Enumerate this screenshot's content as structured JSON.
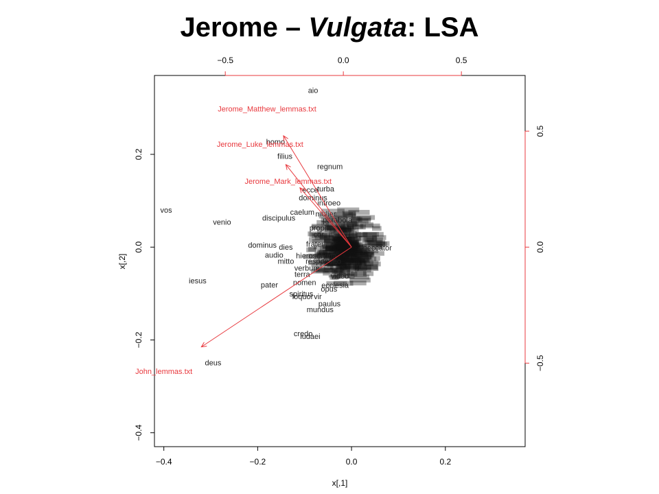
{
  "slide": {
    "title_pre": "Jerome – ",
    "title_italic": "Vulgata",
    "title_post": ": LSA"
  },
  "chart_data": {
    "type": "scatter",
    "subtype": "biplot",
    "xlabel": "x[,1]",
    "ylabel": "x[,2]",
    "xlim": [
      -0.42,
      0.37
    ],
    "ylim": [
      -0.43,
      0.37
    ],
    "x_ticks": [
      -0.4,
      -0.2,
      0.0,
      0.2
    ],
    "x_tick_labels": [
      "−0.4",
      "−0.2",
      "0.0",
      "0.2"
    ],
    "y_ticks": [
      -0.4,
      -0.2,
      0.0,
      0.2
    ],
    "y_tick_labels": [
      "−0.4",
      "−0.2",
      "0.0",
      "0.2"
    ],
    "top_axis_range": [
      -0.8,
      0.77
    ],
    "top_ticks": [
      -0.5,
      0.0,
      0.5
    ],
    "top_tick_labels": [
      "−0.5",
      "0.0",
      "0.5"
    ],
    "right_axis_range": [
      -0.86,
      0.74
    ],
    "right_ticks": [
      -0.5,
      0.0,
      0.5
    ],
    "right_tick_labels": [
      "−0.5",
      "0.0",
      "0.5"
    ],
    "colors": {
      "words": "#222222",
      "vectors": "#e8383d",
      "axes": "#000000"
    },
    "words": [
      {
        "label": "aio",
        "x": -0.082,
        "y": 0.338
      },
      {
        "label": "homo",
        "x": -0.162,
        "y": 0.227
      },
      {
        "label": "filius",
        "x": -0.142,
        "y": 0.196
      },
      {
        "label": "regnum",
        "x": -0.046,
        "y": 0.174
      },
      {
        "label": "ecce",
        "x": -0.088,
        "y": 0.124
      },
      {
        "label": "turba",
        "x": -0.055,
        "y": 0.126
      },
      {
        "label": "dominus",
        "x": -0.082,
        "y": 0.107
      },
      {
        "label": "caelum",
        "x": -0.105,
        "y": 0.076
      },
      {
        "label": "discipulus",
        "x": -0.155,
        "y": 0.063
      },
      {
        "label": "vos",
        "x": -0.395,
        "y": 0.08
      },
      {
        "label": "venio",
        "x": -0.276,
        "y": 0.054
      },
      {
        "label": "dominus",
        "x": -0.19,
        "y": 0.005
      },
      {
        "label": "dies",
        "x": -0.14,
        "y": 0.0
      },
      {
        "label": "audio",
        "x": -0.165,
        "y": -0.017
      },
      {
        "label": "mitto",
        "x": -0.14,
        "y": -0.03
      },
      {
        "label": "iesus",
        "x": -0.328,
        "y": -0.072
      },
      {
        "label": "pater",
        "x": -0.175,
        "y": -0.081
      },
      {
        "label": "verbum",
        "x": -0.095,
        "y": -0.045
      },
      {
        "label": "terra",
        "x": -0.105,
        "y": -0.058
      },
      {
        "label": "nomen",
        "x": -0.1,
        "y": -0.076
      },
      {
        "label": "opus",
        "x": -0.048,
        "y": -0.09
      },
      {
        "label": "spiritus",
        "x": -0.107,
        "y": -0.1
      },
      {
        "label": "loquor",
        "x": -0.104,
        "y": -0.106
      },
      {
        "label": "vir",
        "x": -0.072,
        "y": -0.106
      },
      {
        "label": "paulus",
        "x": -0.047,
        "y": -0.122
      },
      {
        "label": "mundus",
        "x": -0.067,
        "y": -0.134
      },
      {
        "label": "credo",
        "x": -0.103,
        "y": -0.186
      },
      {
        "label": "iudaei",
        "x": -0.088,
        "y": -0.192
      },
      {
        "label": "deus",
        "x": -0.295,
        "y": -0.249
      },
      {
        "label": "propheta",
        "x": -0.058,
        "y": 0.042
      },
      {
        "label": "ecclesia",
        "x": -0.035,
        "y": -0.082
      },
      {
        "label": "hierosolyma",
        "x": -0.075,
        "y": -0.018
      },
      {
        "label": "frater",
        "x": -0.078,
        "y": 0.007
      },
      {
        "label": "peccator",
        "x": 0.055,
        "y": -0.001
      },
      {
        "label": "video",
        "x": -0.025,
        "y": -0.062
      },
      {
        "label": "parabola",
        "x": -0.03,
        "y": 0.059
      },
      {
        "label": "introeo",
        "x": -0.048,
        "y": 0.096
      },
      {
        "label": "cor",
        "x": -0.07,
        "y": 0.028
      },
      {
        "label": "mulier",
        "x": -0.055,
        "y": 0.072
      },
      {
        "label": "respondeo",
        "x": -0.06,
        "y": -0.03
      }
    ],
    "vectors": [
      {
        "label": "Jerome_Matthew_lemmas.txt",
        "x": -0.145,
        "y": 0.24
      },
      {
        "label": "Jerome_Luke_lemmas.txt",
        "x": -0.14,
        "y": 0.178
      },
      {
        "label": "Jerome_Mark_lemmas.txt",
        "x": -0.11,
        "y": 0.128
      },
      {
        "label": "John_lemmas.txt",
        "x": -0.32,
        "y": -0.215
      }
    ],
    "vector_label_positions": [
      {
        "x": -0.18,
        "y": 0.298
      },
      {
        "x": -0.195,
        "y": 0.222
      },
      {
        "x": -0.135,
        "y": 0.142
      },
      {
        "x": -0.4,
        "y": -0.267
      }
    ]
  }
}
